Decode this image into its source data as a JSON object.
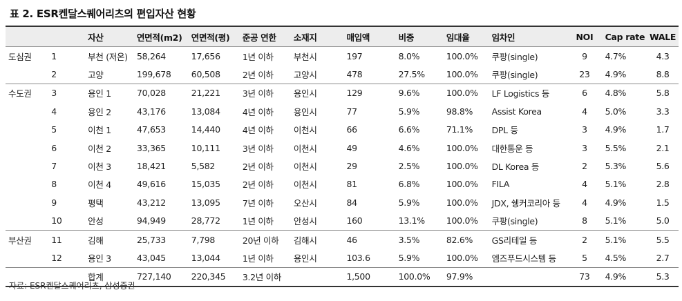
{
  "title": "표 2. ESR켄달스퀘어리츠의 편입자산 현황",
  "headers": [
    "",
    "",
    "자산",
    "연면적(m2)",
    "연면적(평)",
    "준공 연한",
    "소재지",
    "매입액",
    "비중",
    "임대율",
    "임차인",
    "NOI",
    "Cap rate",
    "WALE"
  ],
  "rows": [
    {
      "region": "도심권",
      "no": "1",
      "asset": "부천 (저온)",
      "m2": "58,264",
      "py": "17,656",
      "year": "1년 이하",
      "loc": "부천시",
      "price": "197",
      "ratio": "8.0%",
      "occ": "100.0%",
      "tenant": "쿠팡(single)",
      "noi": "9",
      "cap": "4.7%",
      "wale": "4.3"
    },
    {
      "region": "",
      "no": "2",
      "asset": "고양",
      "m2": "199,678",
      "py": "60,508",
      "year": "2년 이하",
      "loc": "고양시",
      "price": "478",
      "ratio": "27.5%",
      "occ": "100.0%",
      "tenant": "쿠팡(single)",
      "noi": "23",
      "cap": "4.9%",
      "wale": "8.8"
    },
    {
      "region": "수도권",
      "no": "3",
      "asset": "용인 1",
      "m2": "70,028",
      "py": "21,221",
      "year": "3년 이하",
      "loc": "용인시",
      "price": "129",
      "ratio": "9.6%",
      "occ": "100.0%",
      "tenant": "LF Logistics 등",
      "noi": "6",
      "cap": "4.8%",
      "wale": "5.8"
    },
    {
      "region": "",
      "no": "4",
      "asset": "용인 2",
      "m2": "43,176",
      "py": "13,084",
      "year": "4년 이하",
      "loc": "용인시",
      "price": "77",
      "ratio": "5.9%",
      "occ": "98.8%",
      "tenant": "Assist Korea",
      "noi": "4",
      "cap": "5.0%",
      "wale": "3.3"
    },
    {
      "region": "",
      "no": "5",
      "asset": "이천 1",
      "m2": "47,653",
      "py": "14,440",
      "year": "4년 이하",
      "loc": "이천시",
      "price": "66",
      "ratio": "6.6%",
      "occ": "71.1%",
      "tenant": "DPL 등",
      "noi": "3",
      "cap": "4.9%",
      "wale": "1.7"
    },
    {
      "region": "",
      "no": "6",
      "asset": "이천 2",
      "m2": "33,365",
      "py": "10,111",
      "year": "3년 이하",
      "loc": "이천시",
      "price": "49",
      "ratio": "4.6%",
      "occ": "100.0%",
      "tenant": "대한통운 등",
      "noi": "3",
      "cap": "5.5%",
      "wale": "2.1"
    },
    {
      "region": "",
      "no": "7",
      "asset": "이천 3",
      "m2": "18,421",
      "py": "5,582",
      "year": "2년 이하",
      "loc": "이천시",
      "price": "29",
      "ratio": "2.5%",
      "occ": "100.0%",
      "tenant": "DL Korea 등",
      "noi": "2",
      "cap": "5.3%",
      "wale": "5.6"
    },
    {
      "region": "",
      "no": "8",
      "asset": "이천 4",
      "m2": "49,616",
      "py": "15,035",
      "year": "2년 이하",
      "loc": "이천시",
      "price": "81",
      "ratio": "6.8%",
      "occ": "100.0%",
      "tenant": "FILA",
      "noi": "4",
      "cap": "5.1%",
      "wale": "2.8"
    },
    {
      "region": "",
      "no": "9",
      "asset": "평택",
      "m2": "43,212",
      "py": "13,095",
      "year": "7년 이하",
      "loc": "오산시",
      "price": "84",
      "ratio": "5.9%",
      "occ": "100.0%",
      "tenant": "JDX, 쉥커코리아 등",
      "noi": "4",
      "cap": "4.9%",
      "wale": "1.5"
    },
    {
      "region": "",
      "no": "10",
      "asset": "안성",
      "m2": "94,949",
      "py": "28,772",
      "year": "1년 이하",
      "loc": "안성시",
      "price": "160",
      "ratio": "13.1%",
      "occ": "100.0%",
      "tenant": "쿠팡(single)",
      "noi": "8",
      "cap": "5.1%",
      "wale": "5.0"
    },
    {
      "region": "부산권",
      "no": "11",
      "asset": "김해",
      "m2": "25,733",
      "py": "7,798",
      "year": "20년 이하",
      "loc": "김해시",
      "price": "46",
      "ratio": "3.5%",
      "occ": "82.6%",
      "tenant": "GS리테일 등",
      "noi": "2",
      "cap": "5.1%",
      "wale": "5.5"
    },
    {
      "region": "",
      "no": "12",
      "asset": "용인 3",
      "m2": "43,045",
      "py": "13,044",
      "year": "1년 이하",
      "loc": "용인시",
      "price": "103.6",
      "ratio": "5.9%",
      "occ": "100.0%",
      "tenant": "엠즈푸드시스템 등",
      "noi": "5",
      "cap": "4.5%",
      "wale": "2.7"
    }
  ],
  "total": {
    "region": "",
    "no": "",
    "asset": "합계",
    "m2": "727,140",
    "py": "220,345",
    "year": "3.2년 이하",
    "loc": "",
    "price": "1,500",
    "ratio": "100.0%",
    "occ": "97.9%",
    "tenant": "",
    "noi": "73",
    "cap": "4.9%",
    "wale": "5.3"
  },
  "source": "자료: ESR켄달스퀘어리츠, 삼성증권"
}
